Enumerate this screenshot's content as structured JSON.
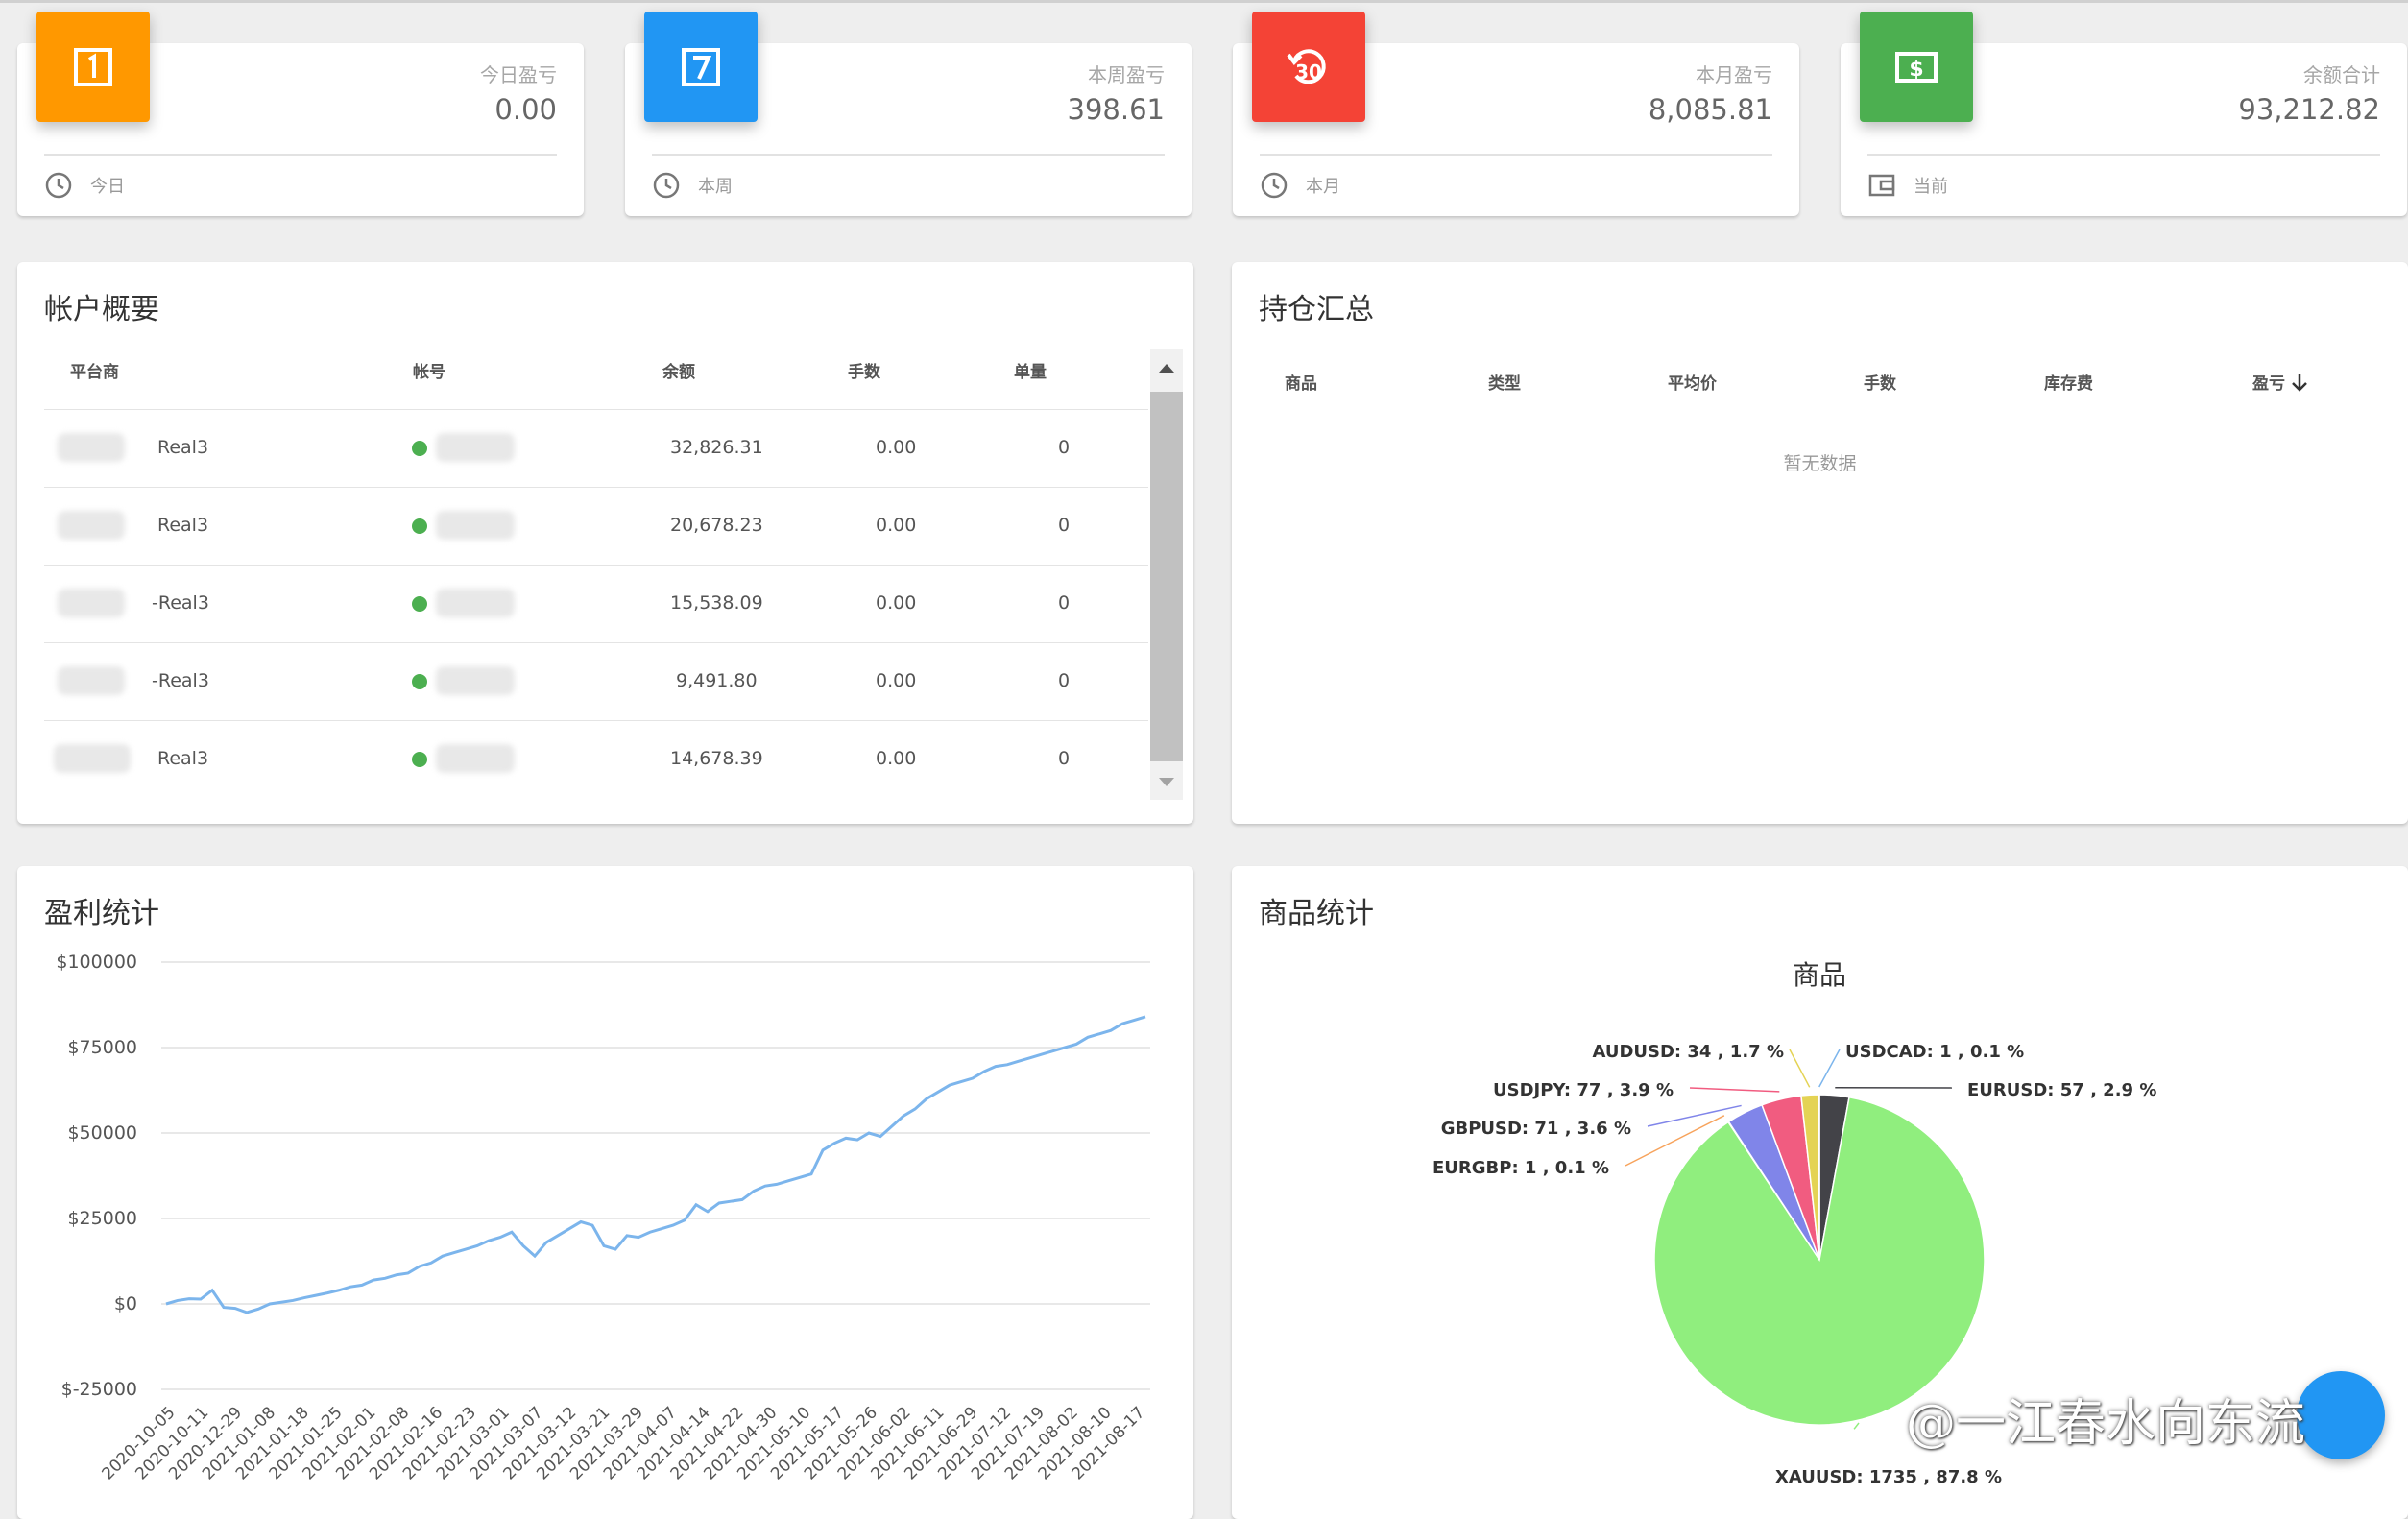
{
  "stats": [
    {
      "label": "今日盈亏",
      "value": "0.00",
      "footer": "今日",
      "color": "#ff9800",
      "icon": "calendar-1-icon",
      "footer_icon": "clock-icon"
    },
    {
      "label": "本周盈亏",
      "value": "398.61",
      "footer": "本周",
      "color": "#2196f3",
      "icon": "calendar-7-icon",
      "footer_icon": "clock-icon"
    },
    {
      "label": "本月盈亏",
      "value": "8,085.81",
      "footer": "本月",
      "color": "#f44336",
      "icon": "history-30-icon",
      "footer_icon": "clock-icon"
    },
    {
      "label": "余额合计",
      "value": "93,212.82",
      "footer": "当前",
      "color": "#4caf50",
      "icon": "money-icon",
      "footer_icon": "wallet-icon"
    }
  ],
  "accounts": {
    "title": "帐户概要",
    "columns": [
      "平台商",
      "帐号",
      "余额",
      "手数",
      "单量"
    ],
    "rows": [
      {
        "broker": "Real3",
        "balance": "32,826.31",
        "lots": "0.00",
        "orders": "0"
      },
      {
        "broker": "Real3",
        "balance": "20,678.23",
        "lots": "0.00",
        "orders": "0"
      },
      {
        "broker": "-Real3",
        "balance": "15,538.09",
        "lots": "0.00",
        "orders": "0"
      },
      {
        "broker": "-Real3",
        "balance": "9,491.80",
        "lots": "0.00",
        "orders": "0"
      },
      {
        "broker": "Real3",
        "balance": "14,678.39",
        "lots": "0.00",
        "orders": "0"
      }
    ]
  },
  "positions": {
    "title": "持仓汇总",
    "columns": [
      "商品",
      "类型",
      "平均价",
      "手数",
      "库存费",
      "盈亏"
    ],
    "empty": "暂无数据"
  },
  "profit": {
    "title": "盈利统计",
    "chart_data": {
      "type": "line",
      "y_ticks": [
        "$100000",
        "$75000",
        "$50000",
        "$25000",
        "$0",
        "$-25000"
      ],
      "ylim": [
        -25000,
        100000
      ],
      "x_ticks": [
        "2020-10-05",
        "2020-10-11",
        "2020-12-29",
        "2021-01-08",
        "2021-01-18",
        "2021-01-25",
        "2021-02-01",
        "2021-02-08",
        "2021-02-16",
        "2021-02-23",
        "2021-03-01",
        "2021-03-07",
        "2021-03-12",
        "2021-03-21",
        "2021-03-29",
        "2021-04-07",
        "2021-04-14",
        "2021-04-22",
        "2021-04-30",
        "2021-05-10",
        "2021-05-17",
        "2021-05-26",
        "2021-06-02",
        "2021-06-11",
        "2021-06-29",
        "2021-07-12",
        "2021-07-19",
        "2021-08-02",
        "2021-08-10",
        "2021-08-17"
      ],
      "values": [
        0,
        1000,
        1500,
        1400,
        4000,
        -1000,
        -1300,
        -2500,
        -1500,
        0,
        500,
        1000,
        1800,
        2500,
        3200,
        4000,
        5000,
        5500,
        7000,
        7500,
        8500,
        9000,
        11000,
        12000,
        14000,
        15000,
        16000,
        17000,
        18500,
        19500,
        21000,
        17000,
        14000,
        18000,
        20000,
        22000,
        24000,
        23000,
        17000,
        16000,
        20000,
        19500,
        21000,
        22000,
        23000,
        24500,
        29000,
        27000,
        29500,
        30000,
        30500,
        33000,
        34500,
        35000,
        36000,
        37000,
        38000,
        45000,
        47000,
        48500,
        48000,
        50000,
        49000,
        52000,
        55000,
        57000,
        60000,
        62000,
        64000,
        65000,
        66000,
        68000,
        69500,
        70000,
        71000,
        72000,
        73000,
        74000,
        75000,
        76000,
        78000,
        79000,
        80000,
        82000,
        83000,
        84000
      ]
    }
  },
  "products": {
    "title": "商品统计",
    "chart_data": {
      "type": "pie",
      "title": "商品",
      "slices": [
        {
          "name": "XAUUSD",
          "count": 1735,
          "percent": 87.8,
          "label": "XAUUSD: 1735 , 87.8 %",
          "color": "#90ee7e"
        },
        {
          "name": "EURGBP",
          "count": 1,
          "percent": 0.1,
          "label": "EURGBP: 1 , 0.1 %",
          "color": "#f7a35c"
        },
        {
          "name": "GBPUSD",
          "count": 71,
          "percent": 3.6,
          "label": "GBPUSD: 71 , 3.6 %",
          "color": "#8085e9"
        },
        {
          "name": "USDJPY",
          "count": 77,
          "percent": 3.9,
          "label": "USDJPY: 77 , 3.9 %",
          "color": "#f15c80"
        },
        {
          "name": "AUDUSD",
          "count": 34,
          "percent": 1.7,
          "label": "AUDUSD: 34 , 1.7 %",
          "color": "#e4d354"
        },
        {
          "name": "USDCAD",
          "count": 1,
          "percent": 0.1,
          "label": "USDCAD: 1 , 0.1 %",
          "color": "#7cb5ec"
        },
        {
          "name": "EURUSD",
          "count": 57,
          "percent": 2.9,
          "label": "EURUSD: 57 , 2.9 %",
          "color": "#434348"
        }
      ]
    }
  },
  "watermark": "@一江春水向东流"
}
